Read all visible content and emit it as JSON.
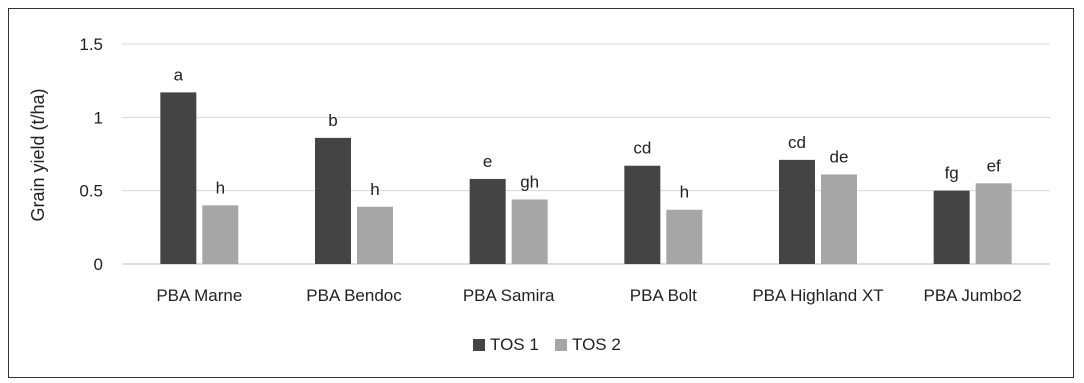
{
  "chart_data": {
    "type": "bar",
    "ylabel": "Grain yield (t/ha)",
    "xlabel": "",
    "title": "",
    "ylim": [
      0,
      1.5
    ],
    "yticks": [
      0,
      0.5,
      1,
      1.5
    ],
    "ytick_labels": [
      "0",
      "0.5",
      "1",
      "1.5"
    ],
    "grid": true,
    "legend_position": "bottom",
    "categories": [
      "PBA Marne",
      "PBA Bendoc",
      "PBA Samira",
      "PBA Bolt",
      "PBA Highland XT",
      "PBA Jumbo2"
    ],
    "series": [
      {
        "name": "TOS 1",
        "color": "#444444",
        "values": [
          1.17,
          0.86,
          0.58,
          0.67,
          0.71,
          0.5
        ],
        "labels": [
          "a",
          "b",
          "e",
          "cd",
          "cd",
          "fg"
        ]
      },
      {
        "name": "TOS 2",
        "color": "#a6a6a6",
        "values": [
          0.4,
          0.39,
          0.44,
          0.37,
          0.61,
          0.55
        ],
        "labels": [
          "h",
          "h",
          "gh",
          "h",
          "de",
          "ef"
        ]
      }
    ]
  }
}
